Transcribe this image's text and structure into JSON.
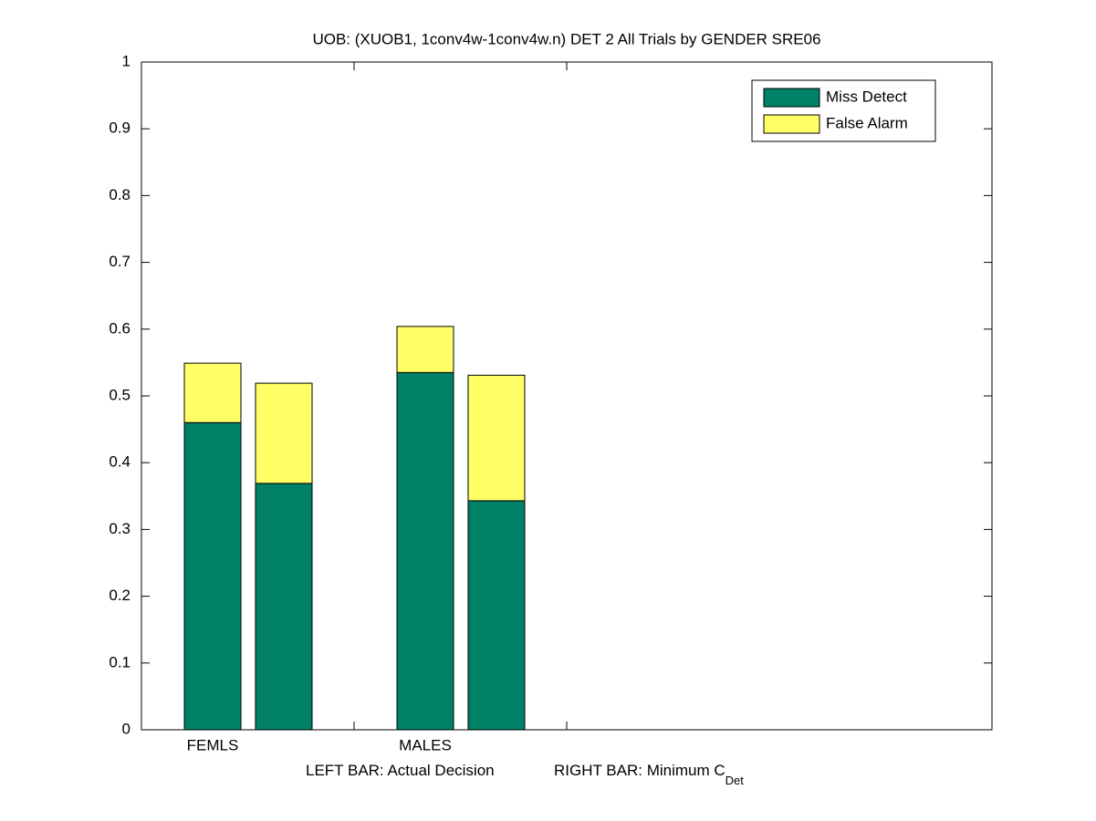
{
  "chart_data": {
    "type": "stacked_bar",
    "title": "UOB: (XUOB1, 1conv4w-1conv4w.n) DET 2 All Trials by GENDER SRE06",
    "categories": [
      "FEMLS",
      null,
      "MALES",
      null
    ],
    "xlabel_parts": [
      "LEFT BAR: Actual Decision",
      "RIGHT BAR: Minimum C",
      "Det"
    ],
    "series": [
      {
        "name": "Miss Detect",
        "color": "#008066",
        "values": [
          0.46,
          0.369,
          0.535,
          0.343
        ]
      },
      {
        "name": "False Alarm",
        "color": "#ffff66",
        "values": [
          0.089,
          0.15,
          0.069,
          0.188
        ]
      }
    ],
    "ylim": [
      0,
      1
    ],
    "yticks": [
      0,
      0.1,
      0.2,
      0.3,
      0.4,
      0.5,
      0.6,
      0.7,
      0.8,
      0.9,
      1
    ],
    "legend": "upper-right"
  }
}
